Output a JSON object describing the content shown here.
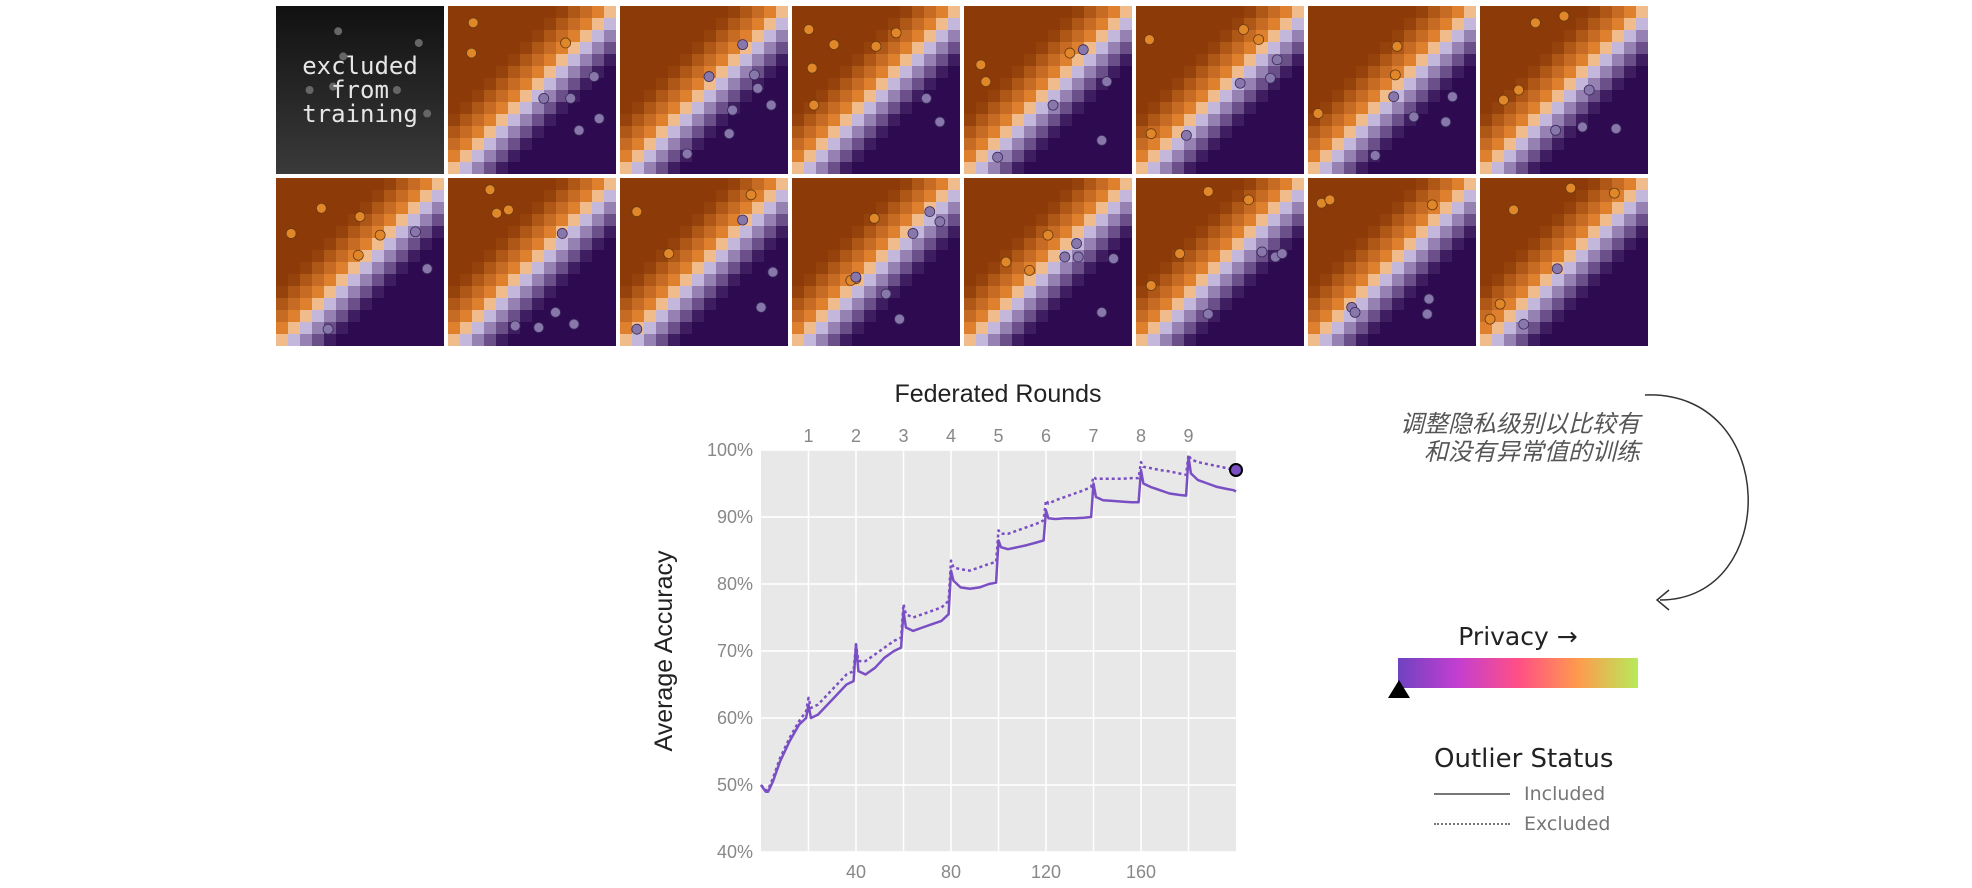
{
  "excluded_panel": {
    "label": "excluded\nfrom\ntraining"
  },
  "colors": {
    "orange": "#e0872a",
    "purple": "#2d0a4e",
    "line": "#7b4fc4",
    "plot_bg": "#e8e8e8"
  },
  "panels": [
    {
      "excluded": true,
      "orange": [],
      "purple": []
    },
    {
      "excluded": false,
      "orange": [
        [
          0.15,
          0.9
        ],
        [
          0.14,
          0.72
        ],
        [
          0.7,
          0.78
        ]
      ],
      "purple": [
        [
          0.57,
          0.45
        ],
        [
          0.73,
          0.45
        ],
        [
          0.87,
          0.58
        ],
        [
          0.9,
          0.33
        ],
        [
          0.78,
          0.26
        ]
      ]
    },
    {
      "excluded": false,
      "orange": [],
      "purple": [
        [
          0.73,
          0.77
        ],
        [
          0.53,
          0.58
        ],
        [
          0.8,
          0.59
        ],
        [
          0.82,
          0.51
        ],
        [
          0.9,
          0.41
        ],
        [
          0.67,
          0.38
        ],
        [
          0.65,
          0.24
        ],
        [
          0.4,
          0.12
        ]
      ]
    },
    {
      "excluded": false,
      "orange": [
        [
          0.1,
          0.86
        ],
        [
          0.25,
          0.77
        ],
        [
          0.12,
          0.63
        ],
        [
          0.5,
          0.76
        ],
        [
          0.62,
          0.84
        ],
        [
          0.13,
          0.41
        ]
      ],
      "purple": [
        [
          0.8,
          0.45
        ],
        [
          0.88,
          0.31
        ]
      ]
    },
    {
      "excluded": false,
      "orange": [
        [
          0.1,
          0.65
        ],
        [
          0.13,
          0.55
        ],
        [
          0.63,
          0.72
        ]
      ],
      "purple": [
        [
          0.71,
          0.74
        ],
        [
          0.85,
          0.55
        ],
        [
          0.53,
          0.41
        ],
        [
          0.82,
          0.2
        ],
        [
          0.2,
          0.1
        ]
      ]
    },
    {
      "excluded": false,
      "orange": [
        [
          0.08,
          0.8
        ],
        [
          0.64,
          0.86
        ],
        [
          0.73,
          0.8
        ],
        [
          0.09,
          0.24
        ]
      ],
      "purple": [
        [
          0.84,
          0.68
        ],
        [
          0.8,
          0.57
        ],
        [
          0.62,
          0.54
        ],
        [
          0.3,
          0.23
        ]
      ]
    },
    {
      "excluded": false,
      "orange": [
        [
          0.53,
          0.76
        ],
        [
          0.52,
          0.59
        ],
        [
          0.06,
          0.36
        ]
      ],
      "purple": [
        [
          0.51,
          0.46
        ],
        [
          0.63,
          0.34
        ],
        [
          0.86,
          0.46
        ],
        [
          0.82,
          0.31
        ],
        [
          0.4,
          0.11
        ]
      ]
    },
    {
      "excluded": false,
      "orange": [
        [
          0.33,
          0.9
        ],
        [
          0.5,
          0.94
        ],
        [
          0.23,
          0.5
        ],
        [
          0.14,
          0.44
        ]
      ],
      "purple": [
        [
          0.65,
          0.5
        ],
        [
          0.81,
          0.27
        ],
        [
          0.61,
          0.28
        ],
        [
          0.45,
          0.26
        ]
      ]
    },
    {
      "excluded": false,
      "orange": [
        [
          0.09,
          0.67
        ],
        [
          0.27,
          0.82
        ],
        [
          0.5,
          0.77
        ],
        [
          0.62,
          0.66
        ],
        [
          0.49,
          0.54
        ]
      ],
      "purple": [
        [
          0.83,
          0.68
        ],
        [
          0.9,
          0.46
        ],
        [
          0.31,
          0.1
        ]
      ]
    },
    {
      "excluded": false,
      "orange": [
        [
          0.25,
          0.93
        ],
        [
          0.36,
          0.81
        ],
        [
          0.29,
          0.79
        ]
      ],
      "purple": [
        [
          0.68,
          0.67
        ],
        [
          0.64,
          0.2
        ],
        [
          0.4,
          0.12
        ],
        [
          0.54,
          0.11
        ],
        [
          0.75,
          0.13
        ]
      ]
    },
    {
      "excluded": false,
      "orange": [
        [
          0.1,
          0.8
        ],
        [
          0.78,
          0.9
        ],
        [
          0.29,
          0.55
        ]
      ],
      "purple": [
        [
          0.73,
          0.75
        ],
        [
          0.91,
          0.44
        ],
        [
          0.84,
          0.23
        ],
        [
          0.1,
          0.1
        ]
      ]
    },
    {
      "excluded": false,
      "orange": [
        [
          0.49,
          0.76
        ],
        [
          0.38,
          0.4
        ],
        [
          0.35,
          0.39
        ]
      ],
      "purple": [
        [
          0.82,
          0.8
        ],
        [
          0.88,
          0.74
        ],
        [
          0.72,
          0.67
        ],
        [
          0.56,
          0.31
        ],
        [
          0.64,
          0.16
        ],
        [
          0.38,
          0.41
        ]
      ]
    },
    {
      "excluded": false,
      "orange": [
        [
          0.5,
          0.66
        ],
        [
          0.25,
          0.5
        ],
        [
          0.39,
          0.45
        ]
      ],
      "purple": [
        [
          0.67,
          0.61
        ],
        [
          0.6,
          0.53
        ],
        [
          0.68,
          0.53
        ],
        [
          0.89,
          0.52
        ],
        [
          0.82,
          0.2
        ]
      ]
    },
    {
      "excluded": false,
      "orange": [
        [
          0.43,
          0.92
        ],
        [
          0.67,
          0.87
        ],
        [
          0.26,
          0.55
        ],
        [
          0.09,
          0.36
        ]
      ],
      "purple": [
        [
          0.75,
          0.56
        ],
        [
          0.83,
          0.53
        ],
        [
          0.87,
          0.55
        ],
        [
          0.43,
          0.19
        ]
      ]
    },
    {
      "excluded": false,
      "orange": [
        [
          0.08,
          0.85
        ],
        [
          0.13,
          0.87
        ],
        [
          0.74,
          0.84
        ]
      ],
      "purple": [
        [
          0.26,
          0.23
        ],
        [
          0.28,
          0.2
        ],
        [
          0.72,
          0.28
        ],
        [
          0.71,
          0.19
        ]
      ]
    },
    {
      "excluded": false,
      "orange": [
        [
          0.2,
          0.81
        ],
        [
          0.54,
          0.94
        ],
        [
          0.8,
          0.91
        ],
        [
          0.12,
          0.25
        ],
        [
          0.06,
          0.16
        ]
      ],
      "purple": [
        [
          0.46,
          0.46
        ],
        [
          0.26,
          0.13
        ]
      ]
    }
  ],
  "annotation": "调整隐私级别以比较有\n和没有异常值的训练",
  "privacy_label": "Privacy →",
  "legend": {
    "title": "Outlier Status",
    "included": "Included",
    "excluded": "Excluded"
  },
  "chart_data": {
    "type": "line",
    "xlabel": "",
    "ylabel": "Average Accuracy",
    "top_axis_label": "Federated Rounds",
    "xlim": [
      0,
      200
    ],
    "ylim": [
      40,
      100
    ],
    "x_ticks": [
      40,
      80,
      120,
      160
    ],
    "y_ticks": [
      40,
      50,
      60,
      70,
      80,
      90,
      100
    ],
    "y_tick_labels": [
      "40%",
      "50%",
      "60%",
      "70%",
      "80%",
      "90%",
      "100%"
    ],
    "round_ticks": [
      {
        "label": "1",
        "x": 20
      },
      {
        "label": "2",
        "x": 40
      },
      {
        "label": "3",
        "x": 60
      },
      {
        "label": "4",
        "x": 80
      },
      {
        "label": "5",
        "x": 100
      },
      {
        "label": "6",
        "x": 120
      },
      {
        "label": "7",
        "x": 140
      },
      {
        "label": "8",
        "x": 160
      },
      {
        "label": "9",
        "x": 180
      }
    ],
    "grid": true,
    "series": [
      {
        "name": "Included",
        "style": "solid",
        "x": [
          0,
          1,
          2,
          3,
          5,
          8,
          12,
          16,
          19,
          20,
          21,
          24,
          28,
          32,
          36,
          39,
          40,
          41,
          44,
          48,
          52,
          56,
          59,
          60,
          61,
          64,
          68,
          72,
          76,
          79,
          80,
          81,
          84,
          88,
          92,
          96,
          99,
          100,
          101,
          104,
          108,
          112,
          116,
          119,
          120,
          121,
          124,
          128,
          132,
          136,
          139,
          140,
          141,
          144,
          148,
          152,
          156,
          159,
          160,
          161,
          164,
          168,
          172,
          176,
          179,
          180,
          181,
          184,
          188,
          192,
          196,
          199,
          200
        ],
        "y": [
          50,
          49.5,
          49,
          49,
          50.5,
          53.5,
          56.5,
          59,
          60,
          62,
          60,
          60.5,
          62,
          63.5,
          65,
          65.5,
          71,
          67,
          66.5,
          67.5,
          69,
          70,
          70.5,
          76,
          73.5,
          73,
          73.5,
          74,
          74.5,
          75.5,
          82,
          80.5,
          79.5,
          79.3,
          79.5,
          80,
          80.2,
          86.5,
          85.5,
          85.2,
          85.5,
          85.8,
          86.2,
          86.5,
          91,
          89.8,
          89.7,
          89.8,
          89.8,
          89.9,
          90,
          95,
          93,
          92.5,
          92.4,
          92.3,
          92.2,
          92.2,
          97,
          95,
          94.5,
          94,
          93.5,
          93.3,
          93.2,
          99,
          96.5,
          95.5,
          95,
          94.5,
          94.2,
          94,
          93.8
        ]
      },
      {
        "name": "Excluded",
        "style": "dotted",
        "x": [
          0,
          1,
          2,
          3,
          5,
          8,
          12,
          16,
          19,
          20,
          21,
          24,
          28,
          32,
          36,
          39,
          40,
          41,
          44,
          48,
          52,
          56,
          59,
          60,
          61,
          64,
          68,
          72,
          76,
          79,
          80,
          81,
          84,
          88,
          92,
          96,
          99,
          100,
          101,
          104,
          108,
          112,
          116,
          119,
          120,
          121,
          124,
          128,
          132,
          136,
          139,
          140,
          141,
          144,
          148,
          152,
          156,
          159,
          160,
          161,
          164,
          168,
          172,
          176,
          179,
          180,
          181,
          184,
          188,
          192,
          196,
          199,
          200
        ],
        "y": [
          50,
          49.6,
          49.2,
          49.3,
          51,
          54,
          57,
          59.5,
          61,
          63,
          61.5,
          62,
          63.5,
          65,
          66.5,
          67,
          71,
          68.5,
          68.5,
          69.5,
          70.5,
          71.5,
          72,
          77,
          75.5,
          75,
          75.5,
          76,
          76.5,
          77.5,
          83.5,
          82.5,
          82.2,
          82,
          82.5,
          83,
          83.3,
          88,
          87.5,
          87.5,
          88,
          88.5,
          89,
          89.5,
          92.5,
          92,
          92.5,
          93,
          93.5,
          94,
          94.5,
          96,
          95.7,
          95.7,
          95.7,
          95.7,
          95.8,
          95.8,
          98.2,
          97.5,
          97.3,
          97,
          96.8,
          96.5,
          96.3,
          99.3,
          98.6,
          98.2,
          97.9,
          97.6,
          97.3,
          97,
          96.8
        ]
      }
    ]
  }
}
